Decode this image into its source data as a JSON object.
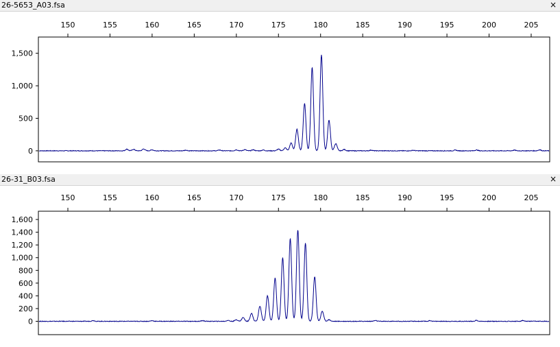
{
  "panels": [
    {
      "title": "26-5653_A03.fsa",
      "close_symbol": "×"
    },
    {
      "title": "26-31_B03.fsa",
      "close_symbol": "×"
    }
  ],
  "chart_data": [
    {
      "type": "line",
      "title": "26-5653_A03.fsa",
      "xlabel": "",
      "ylabel": "",
      "xlim": [
        146.5,
        207.2
      ],
      "ylim": [
        -170,
        1750
      ],
      "x_ticks": [
        150,
        155,
        160,
        165,
        170,
        175,
        180,
        185,
        190,
        195,
        200,
        205
      ],
      "y_ticks": [
        0,
        500,
        1000,
        1500
      ],
      "y_tick_labels": [
        "0",
        "500",
        "1,000",
        "1,500"
      ],
      "grid": false,
      "line_color": "#00008b",
      "baseline": 0,
      "peaks": [
        {
          "x": 157.0,
          "y": 25
        },
        {
          "x": 157.8,
          "y": 22
        },
        {
          "x": 159.0,
          "y": 28
        },
        {
          "x": 160.0,
          "y": 15
        },
        {
          "x": 164.0,
          "y": 10
        },
        {
          "x": 168.0,
          "y": 12
        },
        {
          "x": 170.0,
          "y": 15
        },
        {
          "x": 171.0,
          "y": 18
        },
        {
          "x": 172.0,
          "y": 15
        },
        {
          "x": 173.2,
          "y": 12
        },
        {
          "x": 175.0,
          "y": 25
        },
        {
          "x": 175.8,
          "y": 45
        },
        {
          "x": 176.5,
          "y": 120
        },
        {
          "x": 177.2,
          "y": 330
        },
        {
          "x": 178.1,
          "y": 730
        },
        {
          "x": 179.0,
          "y": 1280
        },
        {
          "x": 180.1,
          "y": 1480
        },
        {
          "x": 181.0,
          "y": 470
        },
        {
          "x": 181.8,
          "y": 110
        },
        {
          "x": 182.8,
          "y": 20
        },
        {
          "x": 186.0,
          "y": 10
        },
        {
          "x": 191.0,
          "y": 8
        },
        {
          "x": 196.0,
          "y": 10
        },
        {
          "x": 198.5,
          "y": 12
        },
        {
          "x": 203.0,
          "y": 10
        },
        {
          "x": 206.0,
          "y": 15
        }
      ]
    },
    {
      "type": "line",
      "title": "26-31_B03.fsa",
      "xlabel": "",
      "ylabel": "",
      "xlim": [
        146.5,
        207.2
      ],
      "ylim": [
        -210,
        1730
      ],
      "x_ticks": [
        150,
        155,
        160,
        165,
        170,
        175,
        180,
        185,
        190,
        195,
        200,
        205
      ],
      "y_ticks": [
        0,
        200,
        400,
        600,
        800,
        1000,
        1200,
        1400,
        1600
      ],
      "y_tick_labels": [
        "0",
        "200",
        "400",
        "600",
        "800",
        "1,000",
        "1,200",
        "1,400",
        "1,600"
      ],
      "grid": false,
      "line_color": "#00008b",
      "baseline": 0,
      "peaks": [
        {
          "x": 153.0,
          "y": 12
        },
        {
          "x": 160.0,
          "y": 10
        },
        {
          "x": 166.0,
          "y": 10
        },
        {
          "x": 169.0,
          "y": 15
        },
        {
          "x": 170.0,
          "y": 25
        },
        {
          "x": 170.8,
          "y": 60
        },
        {
          "x": 171.8,
          "y": 125
        },
        {
          "x": 172.8,
          "y": 240
        },
        {
          "x": 173.7,
          "y": 400
        },
        {
          "x": 174.6,
          "y": 680
        },
        {
          "x": 175.5,
          "y": 1000
        },
        {
          "x": 176.4,
          "y": 1300
        },
        {
          "x": 177.3,
          "y": 1440
        },
        {
          "x": 178.2,
          "y": 1230
        },
        {
          "x": 179.3,
          "y": 700
        },
        {
          "x": 180.2,
          "y": 160
        },
        {
          "x": 181.0,
          "y": 25
        },
        {
          "x": 186.5,
          "y": 12
        },
        {
          "x": 193.0,
          "y": 10
        },
        {
          "x": 198.5,
          "y": 14
        },
        {
          "x": 204.0,
          "y": 12
        }
      ]
    }
  ]
}
